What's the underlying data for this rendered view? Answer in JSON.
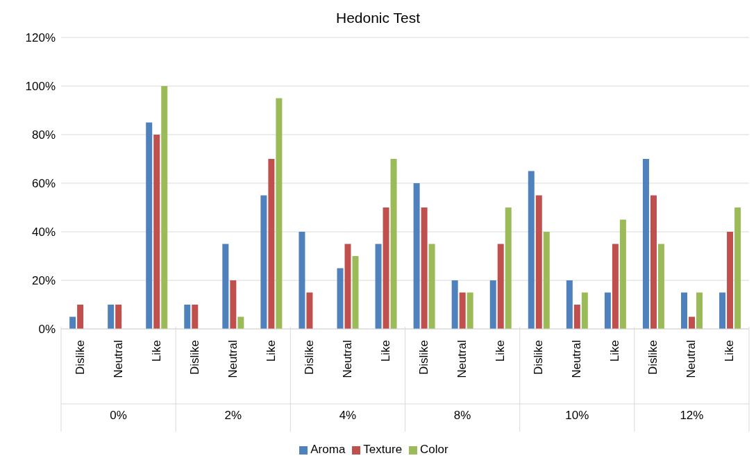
{
  "chart_data": {
    "type": "bar",
    "title": "Hedonic Test",
    "categories": [
      "Dislike",
      "Neutral",
      "Like",
      "Dislike",
      "Neutral",
      "Like",
      "Dislike",
      "Neutral",
      "Like",
      "Dislike",
      "Neutral",
      "Like",
      "Dislike",
      "Neutral",
      "Like",
      "Dislike",
      "Neutral",
      "Like"
    ],
    "annotations": [
      "0%",
      "2%",
      "4%",
      "8%",
      "10%",
      "12%"
    ],
    "series": [
      {
        "name": "Aroma",
        "color": "#4f81bd",
        "values": [
          5,
          10,
          85,
          10,
          35,
          55,
          40,
          25,
          35,
          60,
          20,
          20,
          65,
          20,
          15,
          70,
          15,
          15
        ]
      },
      {
        "name": "Texture",
        "color": "#c0504d",
        "values": [
          10,
          10,
          80,
          10,
          20,
          70,
          15,
          35,
          50,
          50,
          15,
          35,
          55,
          10,
          35,
          55,
          5,
          40
        ]
      },
      {
        "name": "Color",
        "color": "#9bbb59",
        "values": [
          0,
          0,
          100,
          0,
          5,
          95,
          0,
          30,
          70,
          35,
          15,
          50,
          40,
          15,
          45,
          35,
          15,
          50
        ]
      }
    ],
    "ylim": [
      0,
      120
    ],
    "yticks": [
      {
        "value": 0,
        "label": "0%"
      },
      {
        "value": 20,
        "label": "20%"
      },
      {
        "value": 40,
        "label": "40%"
      },
      {
        "value": 60,
        "label": "60%"
      },
      {
        "value": 80,
        "label": "80%"
      },
      {
        "value": 100,
        "label": "100%"
      },
      {
        "value": 120,
        "label": "120%"
      }
    ],
    "grid": "y",
    "legend": "bottom"
  }
}
